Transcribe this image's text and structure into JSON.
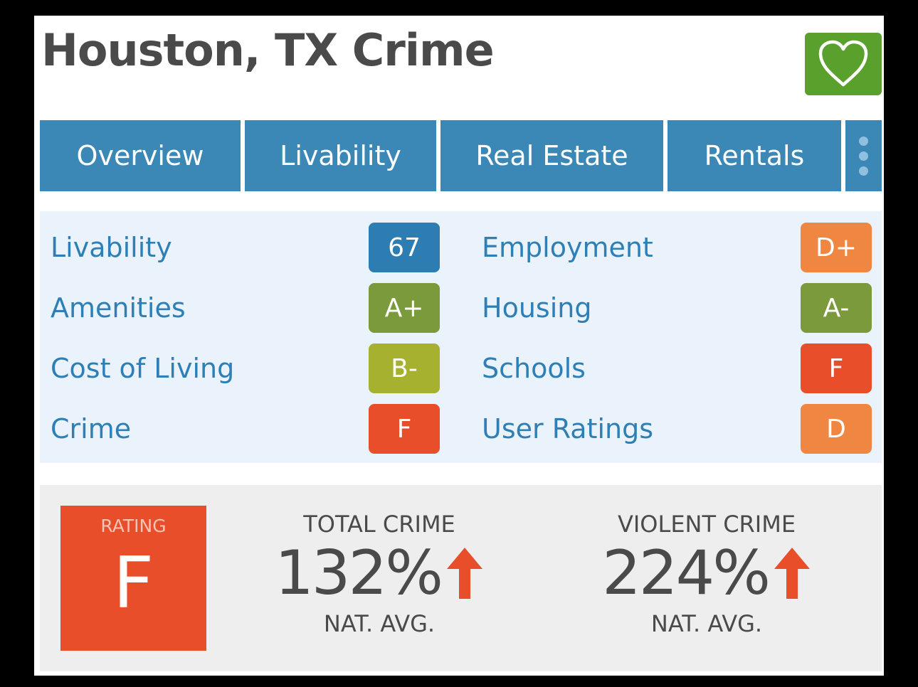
{
  "header": {
    "title": "Houston, TX Crime",
    "favorite_icon": "heart-icon"
  },
  "tabs": [
    {
      "label": "Overview"
    },
    {
      "label": "Livability"
    },
    {
      "label": "Real Estate"
    },
    {
      "label": "Rentals"
    }
  ],
  "more_icon": "vertical-dots-icon",
  "scores": {
    "left": [
      {
        "label": "Livability",
        "grade": "67",
        "color": "#2d7cb2"
      },
      {
        "label": "Amenities",
        "grade": "A+",
        "color": "#7a9a3c"
      },
      {
        "label": "Cost of Living",
        "grade": "B-",
        "color": "#a6b130"
      },
      {
        "label": "Crime",
        "grade": "F",
        "color": "#e94e2a"
      }
    ],
    "right": [
      {
        "label": "Employment",
        "grade": "D+",
        "color": "#ef8743"
      },
      {
        "label": "Housing",
        "grade": "A-",
        "color": "#7a9a3c"
      },
      {
        "label": "Schools",
        "grade": "F",
        "color": "#e94e2a"
      },
      {
        "label": "User Ratings",
        "grade": "D",
        "color": "#ef8743"
      }
    ]
  },
  "crime": {
    "rating_label": "RATING",
    "rating_grade": "F",
    "total": {
      "label": "TOTAL CRIME",
      "value": "132%",
      "sub": "NAT. AVG.",
      "trend": "up-arrow-icon"
    },
    "violent": {
      "label": "VIOLENT CRIME",
      "value": "224%",
      "sub": "NAT. AVG.",
      "trend": "up-arrow-icon"
    }
  },
  "colors": {
    "tab_bg": "#3b87b6",
    "accent_red": "#e94e2a",
    "favorite_green": "#5aa02c"
  }
}
